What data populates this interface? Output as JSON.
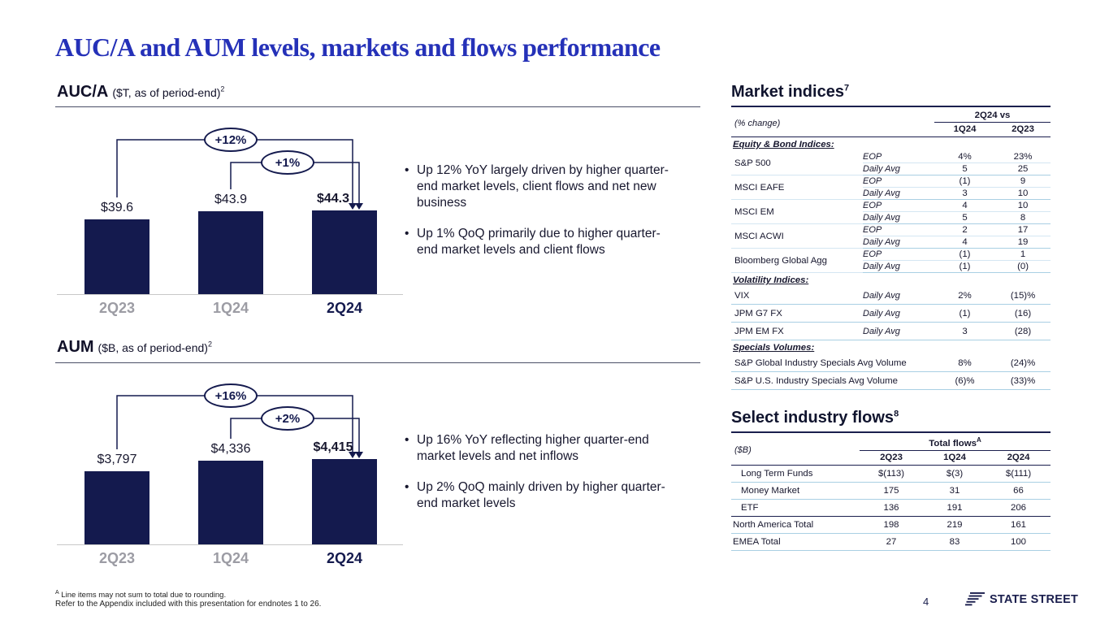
{
  "slide": {
    "title": "AUC/A and AUM levels, markets and flows performance",
    "page_number": "4",
    "footnotes": {
      "marker": "A",
      "line1": " Line items may not sum to total due to rounding.",
      "line2": "Refer to the Appendix included with this presentation for endnotes 1 to 26."
    },
    "logo_text": "STATE STREET"
  },
  "colors": {
    "brand_navy": "#141a4e",
    "title_blue": "#2531b8",
    "table_rule_navy": "#1b1f4e",
    "row_separator_blue": "#a9cfe3",
    "muted_axis_gray": "#9c9ca4"
  },
  "chart_data": [
    {
      "type": "bar",
      "title": "AUC/A",
      "subtitle": "($T, as of period-end)",
      "endnote": "2",
      "categories": [
        "2Q23",
        "1Q24",
        "2Q24"
      ],
      "values": [
        39.6,
        43.9,
        44.3
      ],
      "value_labels": [
        "$39.6",
        "$43.9",
        "$44.3"
      ],
      "ylim": [
        0,
        44.3
      ],
      "annotations": [
        {
          "label": "+12%",
          "from": "2Q23",
          "to": "2Q24",
          "kind": "YoY"
        },
        {
          "label": "+1%",
          "from": "1Q24",
          "to": "2Q24",
          "kind": "QoQ"
        }
      ],
      "bullets": [
        "Up 12% YoY largely driven by higher quarter-end market levels, client flows and net new business",
        "Up 1% QoQ primarily due to higher quarter-end market levels and client flows"
      ]
    },
    {
      "type": "bar",
      "title": "AUM",
      "subtitle": "($B, as of period-end)",
      "endnote": "2",
      "categories": [
        "2Q23",
        "1Q24",
        "2Q24"
      ],
      "values": [
        3797,
        4336,
        4415
      ],
      "value_labels": [
        "$3,797",
        "$4,336",
        "$4,415"
      ],
      "ylim": [
        0,
        4415
      ],
      "annotations": [
        {
          "label": "+16%",
          "from": "2Q23",
          "to": "2Q24",
          "kind": "YoY"
        },
        {
          "label": "+2%",
          "from": "1Q24",
          "to": "2Q24",
          "kind": "QoQ"
        }
      ],
      "bullets": [
        "Up 16% YoY reflecting higher quarter-end market levels and net inflows",
        "Up 2% QoQ mainly driven by higher quarter-end market levels"
      ]
    }
  ],
  "market_indices": {
    "heading": "Market indices",
    "endnote": "7",
    "left_header": "(% change)",
    "group_header": "2Q24 vs",
    "col_headers": [
      "1Q24",
      "2Q23"
    ],
    "sections": [
      {
        "label": "Equity & Bond Indices:",
        "rows": [
          {
            "name": "S&P 500",
            "metrics": [
              [
                "EOP",
                "4%",
                "23%"
              ],
              [
                "Daily Avg",
                "5",
                "25"
              ]
            ]
          },
          {
            "name": "MSCI EAFE",
            "metrics": [
              [
                "EOP",
                "(1)",
                "9"
              ],
              [
                "Daily Avg",
                "3",
                "10"
              ]
            ]
          },
          {
            "name": "MSCI EM",
            "metrics": [
              [
                "EOP",
                "4",
                "10"
              ],
              [
                "Daily Avg",
                "5",
                "8"
              ]
            ]
          },
          {
            "name": "MSCI ACWI",
            "metrics": [
              [
                "EOP",
                "2",
                "17"
              ],
              [
                "Daily Avg",
                "4",
                "19"
              ]
            ]
          },
          {
            "name": "Bloomberg Global Agg",
            "metrics": [
              [
                "EOP",
                "(1)",
                "1"
              ],
              [
                "Daily Avg",
                "(1)",
                "(0)"
              ]
            ]
          }
        ]
      },
      {
        "label": "Volatility Indices:",
        "rows": [
          {
            "name": "VIX",
            "metrics": [
              [
                "Daily Avg",
                "2%",
                "(15)%"
              ]
            ]
          },
          {
            "name": "JPM G7 FX",
            "metrics": [
              [
                "Daily Avg",
                "(1)",
                "(16)"
              ]
            ]
          },
          {
            "name": "JPM EM FX",
            "metrics": [
              [
                "Daily Avg",
                "3",
                "(28)"
              ]
            ]
          }
        ]
      },
      {
        "label": "Specials Volumes:",
        "rows": [
          {
            "name": "S&P Global Industry Specials Avg Volume",
            "metrics": [
              [
                "",
                "8%",
                "(24)%"
              ]
            ]
          },
          {
            "name": "S&P U.S. Industry Specials Avg Volume",
            "metrics": [
              [
                "",
                "(6)%",
                "(33)%"
              ]
            ]
          }
        ]
      }
    ]
  },
  "industry_flows": {
    "heading": "Select industry flows",
    "endnote": "8",
    "left_header": "($B)",
    "group_header": "Total flows",
    "group_header_sup": "A",
    "col_headers": [
      "2Q23",
      "1Q24",
      "2Q24"
    ],
    "rows": [
      {
        "name": "Long Term Funds",
        "values": [
          "$(113)",
          "$(3)",
          "$(111)"
        ],
        "indent": true
      },
      {
        "name": "Money Market",
        "values": [
          "175",
          "31",
          "66"
        ],
        "indent": true
      },
      {
        "name": "ETF",
        "values": [
          "136",
          "191",
          "206"
        ],
        "indent": true
      },
      {
        "name": "North America Total",
        "values": [
          "198",
          "219",
          "161"
        ],
        "indent": false
      },
      {
        "name": "EMEA Total",
        "values": [
          "27",
          "83",
          "100"
        ],
        "indent": false
      }
    ]
  }
}
